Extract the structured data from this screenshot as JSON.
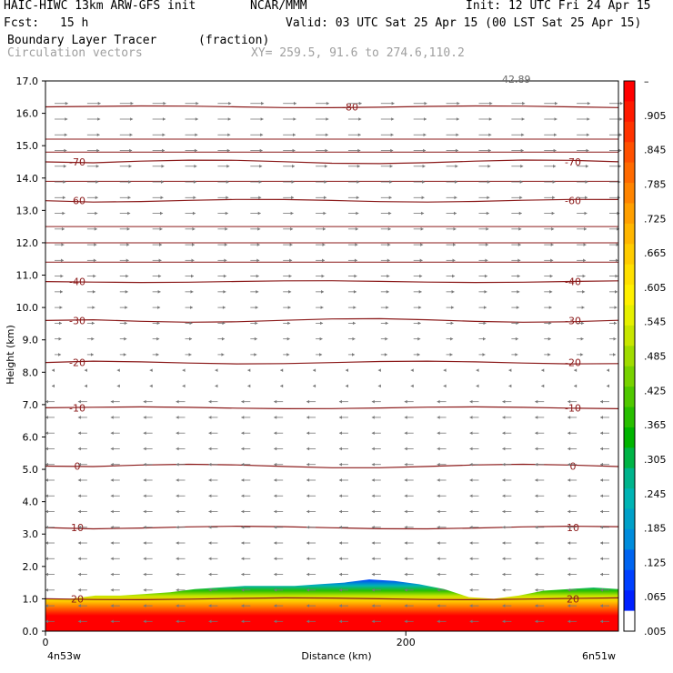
{
  "header": {
    "model": "HAIC-HIWC 13km ARW-GFS init",
    "org": "NCAR/MMM",
    "init": "Init: 12 UTC Fri 24 Apr 15",
    "fcst_label": "Fcst:",
    "fcst_value": "15 h",
    "valid": "Valid: 03 UTC Sat 25 Apr 15 (00 LST Sat 25 Apr 15)",
    "field": "Boundary Layer Tracer",
    "units": "(fraction)",
    "vectors": "Circulation vectors",
    "xy": "XY= 259.5, 91.6 to 274.6,110.2"
  },
  "chart_data": {
    "type": "heatmap",
    "ylabel": "Height (km)",
    "xlabel": "Distance (km)",
    "x_left_label": "4n53w",
    "x_right_label": "6n51w",
    "x_ticks": [
      "0",
      "200"
    ],
    "y_ticks": [
      "0.0",
      "1.0",
      "2.0",
      "3.0",
      "4.0",
      "5.0",
      "6.0",
      "7.0",
      "8.0",
      "9.0",
      "10.0",
      "11.0",
      "12.0",
      "13.0",
      "14.0",
      "15.0",
      "16.0",
      "17.0"
    ],
    "ylim": [
      0,
      17
    ],
    "xlim": [
      0,
      318
    ],
    "vector_ref_label": "42.89",
    "colorbar": {
      "labels": [
        "–",
        ".905",
        ".845",
        ".785",
        ".725",
        ".665",
        ".605",
        ".545",
        ".485",
        ".425",
        ".365",
        ".305",
        ".245",
        ".185",
        ".125",
        ".065",
        ".005"
      ],
      "colors": [
        "#ff0000",
        "#ff1a00",
        "#ff3300",
        "#ff5000",
        "#ff6a00",
        "#ff8400",
        "#ff9f00",
        "#ffb600",
        "#ffcc00",
        "#ffe000",
        "#fff000",
        "#e6f000",
        "#c8e600",
        "#a0dc00",
        "#78d200",
        "#50c800",
        "#28be00",
        "#00b400",
        "#00b446",
        "#00b48c",
        "#00b4b4",
        "#00a0c8",
        "#008cdc",
        "#0064f0",
        "#0040ff",
        "#0020ff",
        "#ffffff"
      ]
    },
    "temperature_contours": [
      {
        "label": "20",
        "level": 1.0
      },
      {
        "label": "10",
        "level": 3.2
      },
      {
        "label": "0",
        "level": 5.1
      },
      {
        "label": "-10",
        "level": 6.9
      },
      {
        "label": "-20",
        "level": 8.3
      },
      {
        "label": "-30",
        "level": 9.6
      },
      {
        "label": "-40",
        "level": 10.8
      },
      {
        "label": "-60",
        "level": 13.3
      },
      {
        "label": "-70",
        "level": 14.5
      },
      {
        "label": "-80",
        "level": 16.2
      }
    ],
    "tracer_top_km": [
      1.0,
      1.0,
      1.1,
      1.1,
      1.15,
      1.2,
      1.3,
      1.35,
      1.4,
      1.4,
      1.4,
      1.45,
      1.5,
      1.6,
      1.55,
      1.45,
      1.3,
      1.05,
      1.0,
      1.1,
      1.25,
      1.3,
      1.35,
      1.3
    ]
  }
}
